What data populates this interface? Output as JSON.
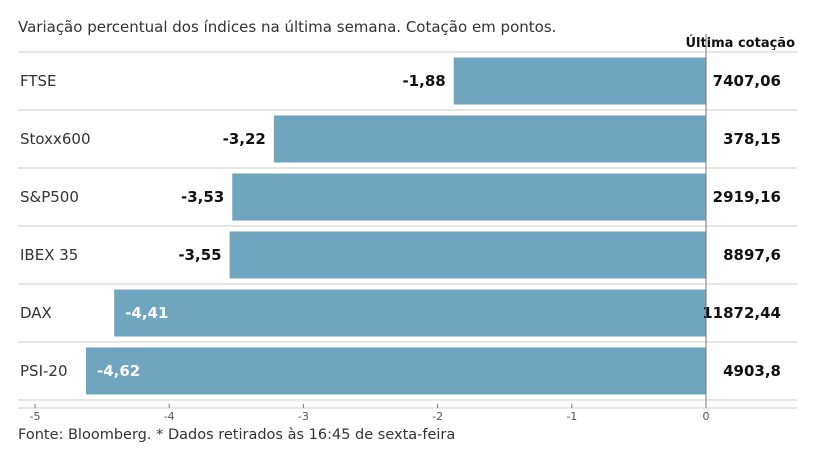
{
  "subtitle": "Variação percentual dos índices na última semana. Cotação em pontos.",
  "column_header": "Última cotação",
  "source": "Fonte: Bloomberg.  * Dados retirados às 16:45 de sexta-feira",
  "colors": {
    "bar": "#6fa5be",
    "grid": "#cfcfcf",
    "axis": "#777777"
  },
  "chart_data": {
    "type": "bar",
    "orientation": "horizontal",
    "title": "Variação percentual dos índices na última semana. Cotação em pontos.",
    "categories": [
      "FTSE",
      "Stoxx600",
      "S&P500",
      "IBEX 35",
      "DAX",
      "PSI-20"
    ],
    "values": [
      -1.88,
      -3.22,
      -3.53,
      -3.55,
      -4.41,
      -4.62
    ],
    "value_labels": [
      "-1,88",
      "-3,22",
      "-3,53",
      "-3,55",
      "-4,41",
      "-4,62"
    ],
    "last_quote_header": "Última cotação",
    "last_quote": [
      "7407,06",
      "378,15",
      "2919,16",
      "8897,6",
      "11872,44",
      "4903,8"
    ],
    "xlim": [
      -5,
      0
    ],
    "xticks": [
      -5,
      -4,
      -3,
      -2,
      -1,
      0
    ],
    "xtick_labels": [
      "-5",
      "-4",
      "-3",
      "-2",
      "-1",
      "0"
    ]
  }
}
